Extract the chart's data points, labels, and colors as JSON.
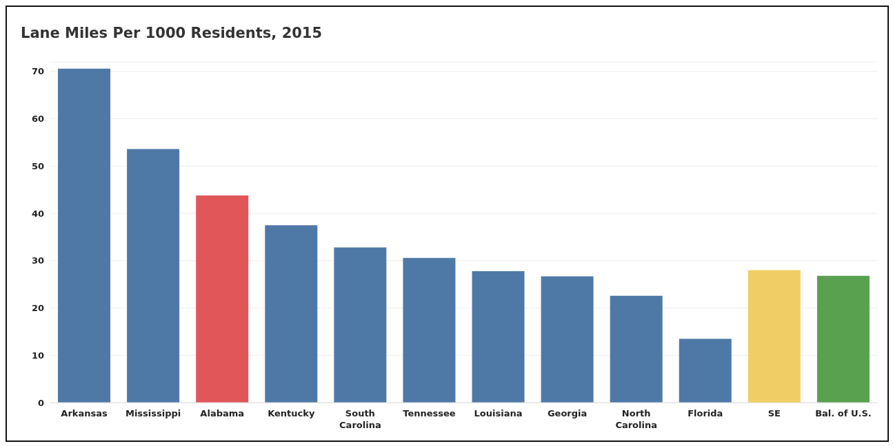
{
  "chart_data": {
    "type": "bar",
    "title": "Lane Miles Per 1000 Residents, 2015",
    "categories": [
      "Arkansas",
      "Mississippi",
      "Alabama",
      "Kentucky",
      "South Carolina",
      "Tennessee",
      "Louisiana",
      "Georgia",
      "North Carolina",
      "Florida",
      "SE",
      "Bal. of U.S."
    ],
    "values": [
      70.6,
      53.6,
      43.8,
      37.5,
      32.8,
      30.6,
      27.8,
      26.7,
      22.6,
      13.5,
      28.0,
      26.8
    ],
    "colors": [
      "#4e79a7",
      "#4e79a7",
      "#e15759",
      "#4e79a7",
      "#4e79a7",
      "#4e79a7",
      "#4e79a7",
      "#4e79a7",
      "#4e79a7",
      "#4e79a7",
      "#f1ce63",
      "#59a14f"
    ],
    "ylim": [
      0,
      72
    ],
    "yticks": [
      0,
      10,
      20,
      30,
      40,
      50,
      60,
      70
    ],
    "grid": "y"
  }
}
